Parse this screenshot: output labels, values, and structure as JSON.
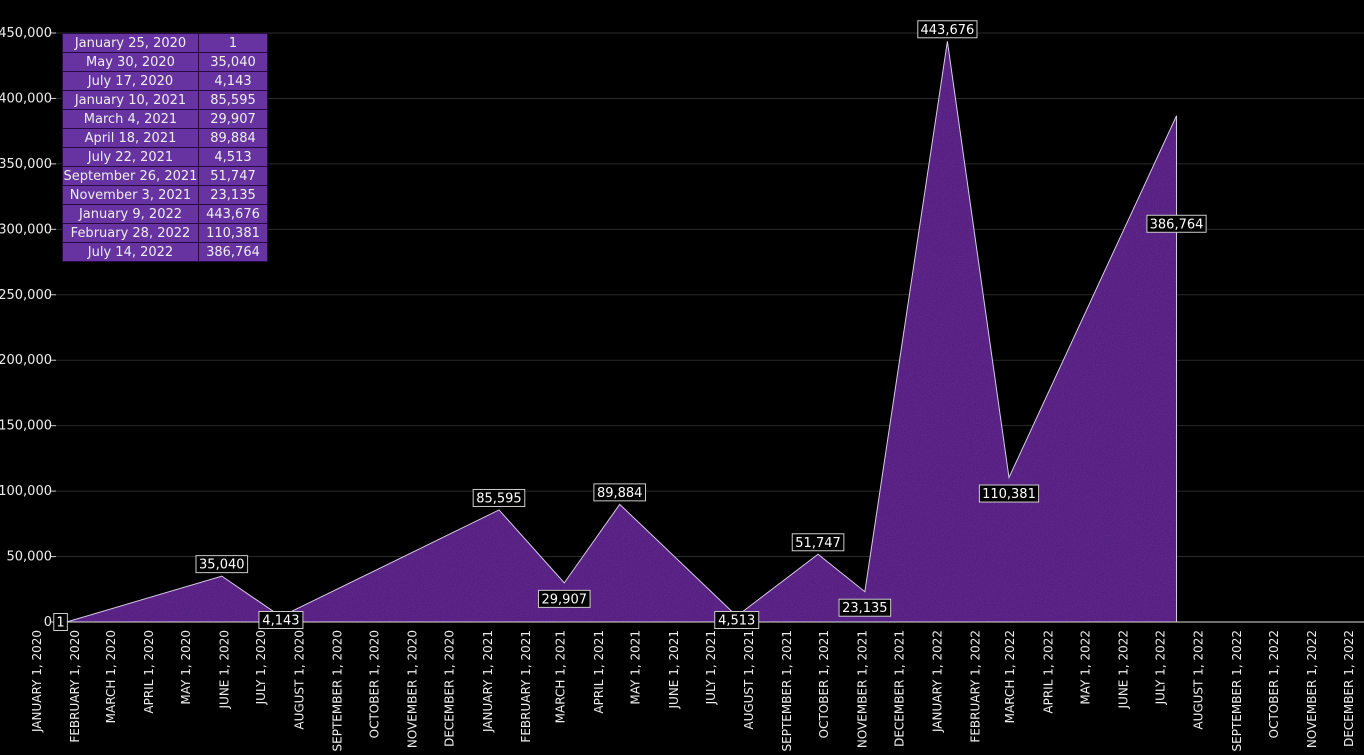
{
  "chart_data": {
    "type": "area",
    "x": [
      "2020-01-25",
      "2020-05-30",
      "2020-07-17",
      "2021-01-10",
      "2021-03-04",
      "2021-04-18",
      "2021-07-22",
      "2021-09-26",
      "2021-11-03",
      "2022-01-09",
      "2022-02-28",
      "2022-07-14"
    ],
    "values": [
      1,
      35040,
      4143,
      85595,
      29907,
      89884,
      4513,
      51747,
      23135,
      443676,
      110381,
      386764
    ],
    "data_labels": [
      "1",
      "35,040",
      "4,143",
      "85,595",
      "29,907",
      "89,884",
      "4,513",
      "51,747",
      "23,135",
      "443,676",
      "110,381",
      "386,764"
    ],
    "table": [
      [
        "January 25, 2020",
        "1"
      ],
      [
        "May 30, 2020",
        "35,040"
      ],
      [
        "July 17, 2020",
        "4,143"
      ],
      [
        "January 10, 2021",
        "85,595"
      ],
      [
        "March 4, 2021",
        "29,907"
      ],
      [
        "April 18, 2021",
        "89,884"
      ],
      [
        "July 22, 2021",
        "4,513"
      ],
      [
        "September 26, 2021",
        "51,747"
      ],
      [
        "November 3, 2021",
        "23,135"
      ],
      [
        "January 9, 2022",
        "443,676"
      ],
      [
        "February 28, 2022",
        "110,381"
      ],
      [
        "July 14, 2022",
        "386,764"
      ]
    ],
    "ylim": [
      0,
      450000
    ],
    "yticks": [
      0,
      50000,
      100000,
      150000,
      200000,
      250000,
      300000,
      350000,
      400000,
      450000
    ],
    "ytick_labels": [
      "0",
      "50,000",
      "100,000",
      "150,000",
      "200,000",
      "250,000",
      "300,000",
      "350,000",
      "400,000",
      "450,000"
    ],
    "xlim": [
      "2020-01-01",
      "2022-12-01"
    ],
    "xtick_labels": [
      "JANUARY 1, 2020",
      "FEBRUARY 1, 2020",
      "MARCH 1, 2020",
      "APRIL 1, 2020",
      "MAY 1, 2020",
      "JUNE 1, 2020",
      "JULY 1, 2020",
      "AUGUST 1, 2020",
      "SEPTEMBER 1, 2020",
      "OCTOBER 1, 2020",
      "NOVEMBER 1, 2020",
      "DECEMBER 1, 2020",
      "JANUARY 1, 2021",
      "FEBRUARY 1, 2021",
      "MARCH 1, 2021",
      "APRIL 1, 2021",
      "MAY 1, 2021",
      "JUNE 1, 2021",
      "JULY 1, 2021",
      "AUGUST 1, 2021",
      "SEPTEMBER 1, 2021",
      "OCTOBER 1, 2021",
      "NOVEMBER 1, 2021",
      "DECEMBER 1, 2021",
      "JANUARY 1, 2022",
      "FEBRUARY 1, 2022",
      "MARCH 1, 2022",
      "APRIL 1, 2022",
      "MAY 1, 2022",
      "JUNE 1, 2022",
      "JULY 1, 2022",
      "AUGUST 1, 2022",
      "SEPTEMBER 1, 2022",
      "OCTOBER 1, 2022",
      "NOVEMBER 1, 2022",
      "DECEMBER 1, 2022"
    ],
    "grid": true,
    "colors": {
      "fill": "#4b1a7c",
      "line": "#d8cce6",
      "table": "#6633a0",
      "background": "#000000"
    }
  }
}
